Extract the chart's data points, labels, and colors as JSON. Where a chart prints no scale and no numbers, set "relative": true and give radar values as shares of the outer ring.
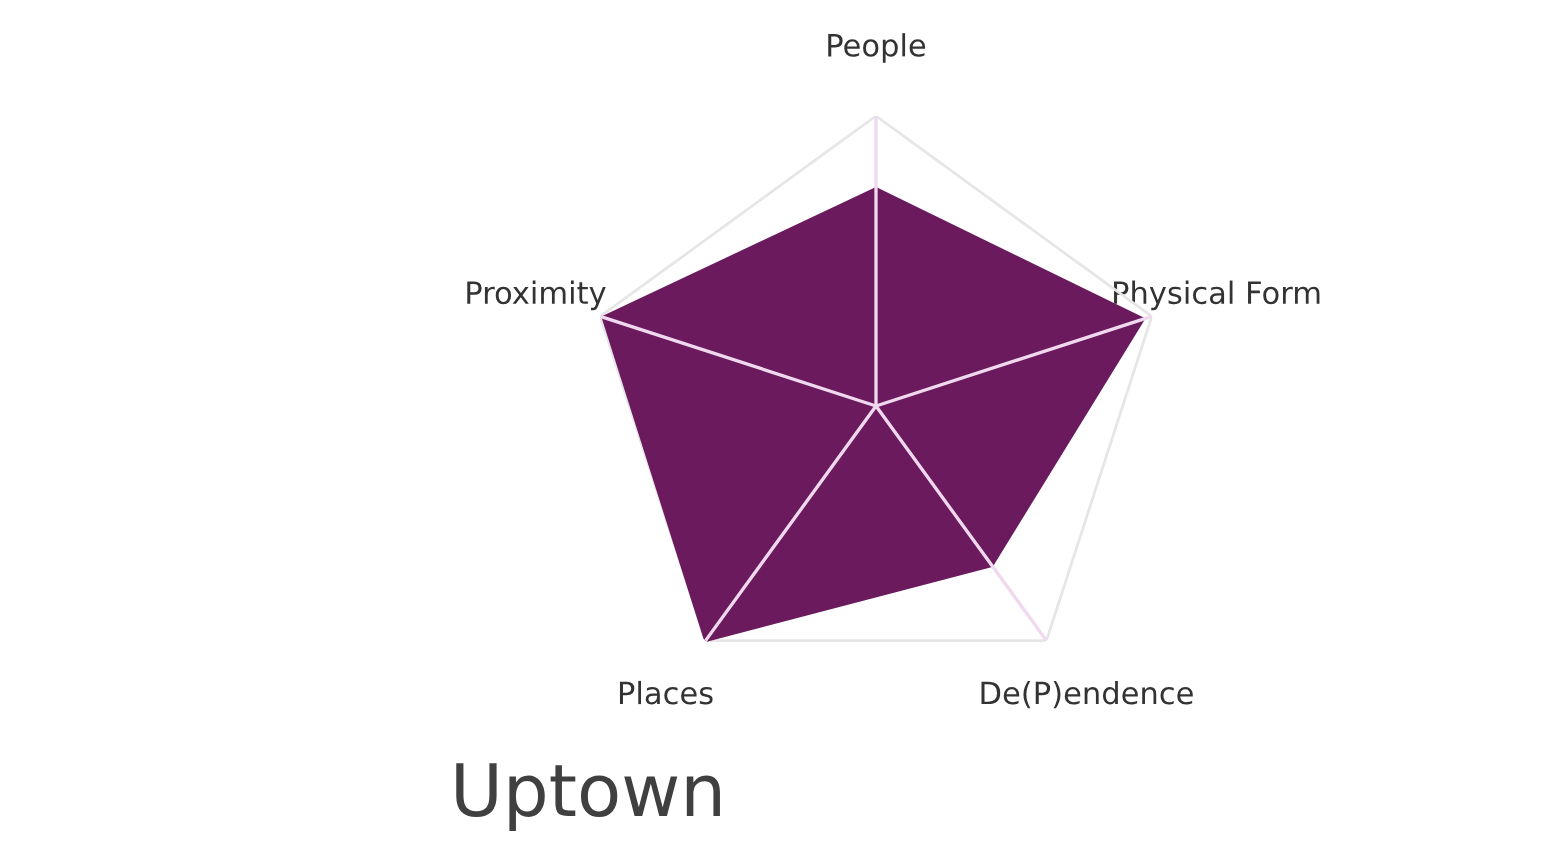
{
  "chart_data": {
    "type": "radar",
    "title": "Uptown",
    "relative": true,
    "grid": true,
    "categories": [
      "People",
      "Physical Form",
      "De(P)endence",
      "Places",
      "Proximity"
    ],
    "series": [
      {
        "color": "#6b1a5e",
        "values": [
          0.75,
          0.97,
          0.68,
          1.0,
          0.99
        ]
      }
    ]
  }
}
